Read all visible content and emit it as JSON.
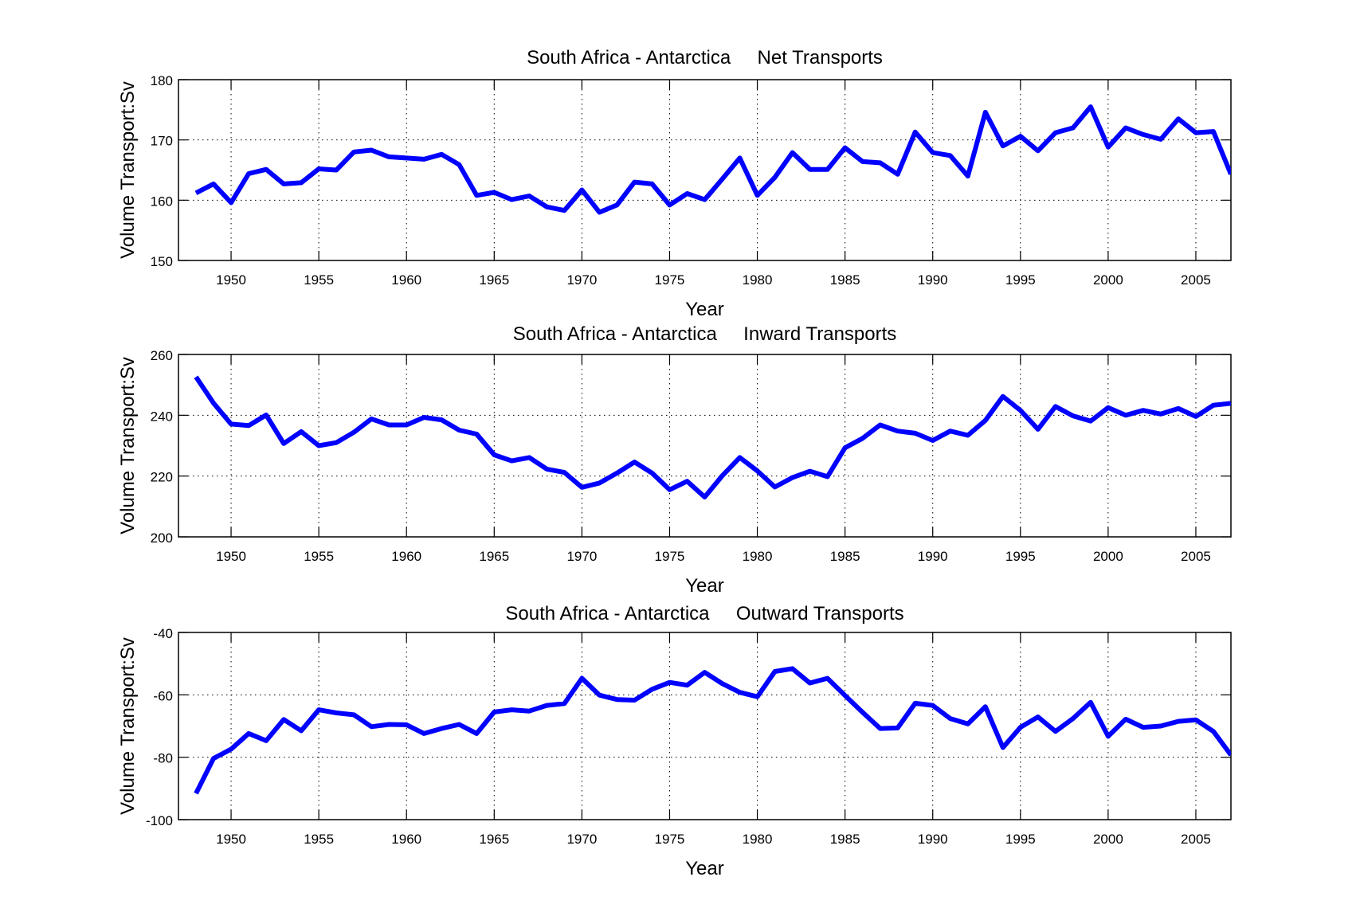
{
  "chart_data": [
    {
      "type": "line",
      "title": "South Africa - Antarctica     Net Transports",
      "xlabel": "Year",
      "ylabel": "Volume Transport:Sv",
      "xlim": [
        1947,
        2007
      ],
      "ylim": [
        150,
        180
      ],
      "xticks": [
        1950,
        1955,
        1960,
        1965,
        1970,
        1975,
        1980,
        1985,
        1990,
        1995,
        2000,
        2005
      ],
      "yticks": [
        150,
        160,
        170,
        180
      ],
      "grid": true,
      "color": "#0000ff",
      "x": [
        1948,
        1949,
        1950,
        1951,
        1952,
        1953,
        1954,
        1955,
        1956,
        1957,
        1958,
        1959,
        1960,
        1961,
        1962,
        1963,
        1964,
        1965,
        1966,
        1967,
        1968,
        1969,
        1970,
        1971,
        1972,
        1973,
        1974,
        1975,
        1976,
        1977,
        1978,
        1979,
        1980,
        1981,
        1982,
        1983,
        1984,
        1985,
        1986,
        1987,
        1988,
        1989,
        1990,
        1991,
        1992,
        1993,
        1994,
        1995,
        1996,
        1997,
        1998,
        1999,
        2000,
        2001,
        2002,
        2003,
        2004,
        2005,
        2006,
        2007
      ],
      "series": [
        {
          "name": "Net Transports",
          "values": [
            161.2,
            162.7,
            159.6,
            164.4,
            165.1,
            162.7,
            162.9,
            165.2,
            165.0,
            168.0,
            168.3,
            167.2,
            167.0,
            166.8,
            167.6,
            165.9,
            160.8,
            161.3,
            160.1,
            160.7,
            158.9,
            158.3,
            161.7,
            158.0,
            159.2,
            163.0,
            162.7,
            159.2,
            161.1,
            160.1,
            163.5,
            167.0,
            160.8,
            163.8,
            167.9,
            165.1,
            165.1,
            168.7,
            166.4,
            166.2,
            164.3,
            171.3,
            167.9,
            167.4,
            164.0,
            174.6,
            169.0,
            170.6,
            168.2,
            171.2,
            172.0,
            175.5,
            168.8,
            172.0,
            170.9,
            170.1,
            173.5,
            171.2,
            171.4,
            164.3
          ]
        }
      ]
    },
    {
      "type": "line",
      "title": "South Africa - Antarctica     Inward Transports",
      "xlabel": "Year",
      "ylabel": "Volume Transport:Sv",
      "xlim": [
        1947,
        2007
      ],
      "ylim": [
        200,
        260
      ],
      "xticks": [
        1950,
        1955,
        1960,
        1965,
        1970,
        1975,
        1980,
        1985,
        1990,
        1995,
        2000,
        2005
      ],
      "yticks": [
        200,
        220,
        240,
        260
      ],
      "grid": true,
      "color": "#0000ff",
      "x": [
        1948,
        1949,
        1950,
        1951,
        1952,
        1953,
        1954,
        1955,
        1956,
        1957,
        1958,
        1959,
        1960,
        1961,
        1962,
        1963,
        1964,
        1965,
        1966,
        1967,
        1968,
        1969,
        1970,
        1971,
        1972,
        1973,
        1974,
        1975,
        1976,
        1977,
        1978,
        1979,
        1980,
        1981,
        1982,
        1983,
        1984,
        1985,
        1986,
        1987,
        1988,
        1989,
        1990,
        1991,
        1992,
        1993,
        1994,
        1995,
        1996,
        1997,
        1998,
        1999,
        2000,
        2001,
        2002,
        2003,
        2004,
        2005,
        2006,
        2007
      ],
      "series": [
        {
          "name": "Inward Transports",
          "values": [
            252.6,
            244.0,
            237.1,
            236.6,
            240.1,
            230.7,
            234.6,
            230.0,
            231.0,
            234.4,
            238.8,
            236.8,
            236.8,
            239.3,
            238.5,
            235.1,
            233.8,
            227.0,
            225.0,
            226.1,
            222.3,
            221.2,
            216.3,
            217.7,
            221.0,
            224.6,
            221.0,
            215.5,
            218.3,
            213.1,
            220.1,
            226.1,
            221.7,
            216.4,
            219.5,
            221.6,
            219.8,
            229.3,
            232.4,
            236.8,
            234.8,
            234.1,
            231.7,
            234.8,
            233.4,
            238.3,
            246.2,
            241.6,
            235.4,
            242.9,
            239.8,
            238.1,
            242.5,
            240.0,
            241.6,
            240.4,
            242.2,
            239.6,
            243.3,
            243.9
          ]
        }
      ]
    },
    {
      "type": "line",
      "title": "South Africa - Antarctica     Outward Transports",
      "xlabel": "Year",
      "ylabel": "Volume Transport:Sv",
      "xlim": [
        1947,
        2007
      ],
      "ylim": [
        -100,
        -40
      ],
      "xticks": [
        1950,
        1955,
        1960,
        1965,
        1970,
        1975,
        1980,
        1985,
        1990,
        1995,
        2000,
        2005
      ],
      "yticks": [
        -100,
        -80,
        -60,
        -40
      ],
      "grid": true,
      "color": "#0000ff",
      "x": [
        1948,
        1949,
        1950,
        1951,
        1952,
        1953,
        1954,
        1955,
        1956,
        1957,
        1958,
        1959,
        1960,
        1961,
        1962,
        1963,
        1964,
        1965,
        1966,
        1967,
        1968,
        1969,
        1970,
        1971,
        1972,
        1973,
        1974,
        1975,
        1976,
        1977,
        1978,
        1979,
        1980,
        1981,
        1982,
        1983,
        1984,
        1985,
        1986,
        1987,
        1988,
        1989,
        1990,
        1991,
        1992,
        1993,
        1994,
        1995,
        1996,
        1997,
        1998,
        1999,
        2000,
        2001,
        2002,
        2003,
        2004,
        2005,
        2006,
        2007
      ],
      "series": [
        {
          "name": "Outward Transports",
          "values": [
            -91.6,
            -80.4,
            -77.4,
            -72.4,
            -74.7,
            -67.9,
            -71.5,
            -64.8,
            -65.8,
            -66.4,
            -70.2,
            -69.5,
            -69.6,
            -72.4,
            -70.8,
            -69.5,
            -72.4,
            -65.5,
            -64.8,
            -65.2,
            -63.4,
            -62.8,
            -54.7,
            -60.1,
            -61.5,
            -61.7,
            -58.2,
            -56.0,
            -56.9,
            -52.8,
            -56.4,
            -59.2,
            -60.6,
            -52.5,
            -51.6,
            -56.2,
            -54.7,
            -60.2,
            -65.6,
            -70.8,
            -70.6,
            -62.7,
            -63.4,
            -67.6,
            -69.3,
            -63.8,
            -76.9,
            -70.4,
            -67.1,
            -71.7,
            -67.6,
            -62.4,
            -73.3,
            -67.8,
            -70.4,
            -70.0,
            -68.5,
            -68.0,
            -71.7,
            -79.3
          ]
        }
      ]
    }
  ]
}
